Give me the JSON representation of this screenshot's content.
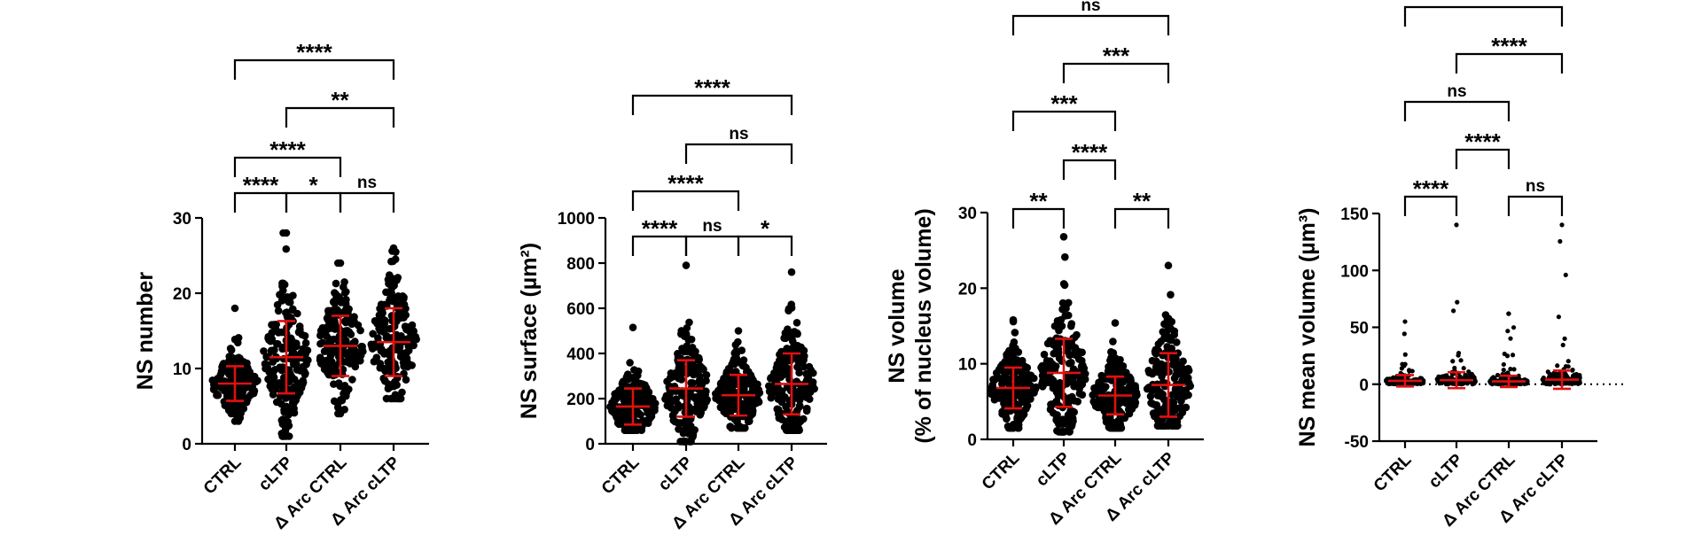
{
  "colors": {
    "points": "#000000",
    "error_bars": "#e01010",
    "axes": "#000000"
  },
  "chart_data": [
    {
      "type": "scatter",
      "subtype": "dot-plot with mean and SD error bars",
      "ylabel": "NS number",
      "ylim": [
        0,
        30
      ],
      "yticks": [
        0,
        10,
        20,
        30
      ],
      "categories": [
        "CTRL",
        "cLTP",
        "Δ Arc CTRL",
        "Δ Arc cLTP"
      ],
      "mean": [
        8,
        11.5,
        13,
        13.5
      ],
      "sd": [
        2.3,
        4.8,
        4,
        4.5
      ],
      "max": [
        18,
        28,
        24,
        26
      ],
      "min": [
        3,
        1,
        4,
        6
      ],
      "zero_line": false,
      "comparisons": [
        {
          "from": "CTRL",
          "to": "cLTP",
          "label": "****"
        },
        {
          "from": "cLTP",
          "to": "Δ Arc CTRL",
          "label": "*"
        },
        {
          "from": "Δ Arc CTRL",
          "to": "Δ Arc cLTP",
          "label": "ns"
        },
        {
          "from": "CTRL",
          "to": "Δ Arc CTRL",
          "label": "****"
        },
        {
          "from": "cLTP",
          "to": "Δ Arc cLTP",
          "label": "**"
        },
        {
          "from": "CTRL",
          "to": "Δ Arc cLTP",
          "label": "****"
        }
      ]
    },
    {
      "type": "scatter",
      "subtype": "dot-plot with mean and SD error bars",
      "ylabel": "NS surface (µm²)",
      "ylim": [
        0,
        1000
      ],
      "yticks": [
        0,
        200,
        400,
        600,
        800,
        1000
      ],
      "categories": [
        "CTRL",
        "cLTP",
        "Δ Arc CTRL",
        "Δ Arc cLTP"
      ],
      "mean": [
        165,
        245,
        215,
        265
      ],
      "sd": [
        80,
        125,
        90,
        135
      ],
      "max": [
        515,
        790,
        500,
        760
      ],
      "min": [
        60,
        10,
        70,
        60
      ],
      "zero_line": false,
      "comparisons": [
        {
          "from": "CTRL",
          "to": "cLTP",
          "label": "****"
        },
        {
          "from": "cLTP",
          "to": "Δ Arc CTRL",
          "label": "ns"
        },
        {
          "from": "Δ Arc CTRL",
          "to": "Δ Arc cLTP",
          "label": "*"
        },
        {
          "from": "CTRL",
          "to": "Δ Arc CTRL",
          "label": "****"
        },
        {
          "from": "cLTP",
          "to": "Δ Arc cLTP",
          "label": "ns"
        },
        {
          "from": "CTRL",
          "to": "Δ Arc cLTP",
          "label": "****"
        }
      ]
    },
    {
      "type": "scatter",
      "subtype": "dot-plot with mean and SD error bars",
      "ylabel": "NS volume",
      "ylabel2": "(% of nucleus volume)",
      "ylim": [
        0,
        30
      ],
      "yticks": [
        0,
        10,
        20,
        30
      ],
      "categories": [
        "CTRL",
        "cLTP",
        "Δ Arc CTRL",
        "Δ Arc cLTP"
      ],
      "mean": [
        6.8,
        8.8,
        5.8,
        7.2
      ],
      "sd": [
        2.7,
        4.5,
        2.5,
        4.2
      ],
      "max": [
        15.8,
        26.8,
        15.4,
        23
      ],
      "min": [
        1.5,
        1,
        1.5,
        1.8
      ],
      "zero_line": false,
      "comparisons": [
        {
          "from": "CTRL",
          "to": "cLTP",
          "label": "**"
        },
        {
          "from": "Δ Arc CTRL",
          "to": "Δ Arc cLTP",
          "label": "**"
        },
        {
          "from": "cLTP",
          "to": "Δ Arc CTRL",
          "label": "****"
        },
        {
          "from": "CTRL",
          "to": "Δ Arc CTRL",
          "label": "***"
        },
        {
          "from": "cLTP",
          "to": "Δ Arc cLTP",
          "label": "***"
        },
        {
          "from": "CTRL",
          "to": "Δ Arc cLTP",
          "label": "ns"
        }
      ]
    },
    {
      "type": "scatter",
      "subtype": "dot-plot with mean and SD error bars",
      "ylabel": "NS mean volume (µm³)",
      "ylim": [
        -50,
        150
      ],
      "yticks": [
        -50,
        0,
        50,
        100,
        150
      ],
      "categories": [
        "CTRL",
        "cLTP",
        "Δ Arc CTRL",
        "Δ Arc cLTP"
      ],
      "mean": [
        3,
        3.5,
        2.5,
        4
      ],
      "sd": [
        5,
        7,
        5,
        8
      ],
      "max": [
        55,
        140,
        62,
        140
      ],
      "min": [
        0,
        0,
        0,
        0
      ],
      "zero_line": true,
      "comparisons": [
        {
          "from": "CTRL",
          "to": "cLTP",
          "label": "****"
        },
        {
          "from": "Δ Arc CTRL",
          "to": "Δ Arc cLTP",
          "label": "ns"
        },
        {
          "from": "cLTP",
          "to": "Δ Arc CTRL",
          "label": "****"
        },
        {
          "from": "CTRL",
          "to": "Δ Arc CTRL",
          "label": "ns"
        },
        {
          "from": "cLTP",
          "to": "Δ Arc cLTP",
          "label": "****"
        },
        {
          "from": "CTRL",
          "to": "Δ Arc cLTP",
          "label": ""
        }
      ]
    }
  ]
}
